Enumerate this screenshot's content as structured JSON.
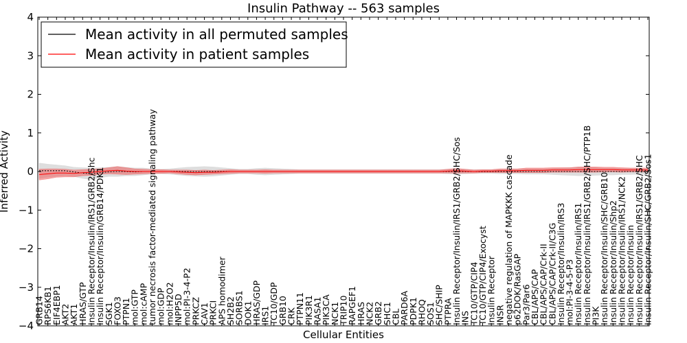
{
  "chart_data": {
    "type": "line",
    "title": "Insulin Pathway -- 563 samples",
    "xlabel": "Cellular Entities",
    "ylabel": "Inferred Activity",
    "ylim": [
      -4,
      4
    ],
    "yticks": [
      -4,
      -3,
      -2,
      -1,
      0,
      1,
      2,
      3,
      4
    ],
    "ytick_labels": [
      "−4",
      "−3",
      "−2",
      "−1",
      "0",
      "1",
      "2",
      "3",
      "4"
    ],
    "grid": false,
    "legend_position": "top-left",
    "categories": [
      "GRB14",
      "RPS6KB1",
      "EIF4EBP1",
      "AKT2",
      "AKT1",
      "HRAS/GTP",
      "Insulin Receptor/Insulin/IRS1/GRB2/Shc",
      "Insulin Receptor/Insulin/GRB14/PDK1",
      "SGK1",
      "FOXO3",
      "PTPN1",
      "mol:GTP",
      "mol:cAMP",
      "tumor necrosis factor-mediated signaling pathway",
      "mol:GDP",
      "mol:H2O2",
      "INPP5D",
      "mol:PI-3-4-P2",
      "PRKCZ",
      "CAV1",
      "PRKCI",
      "APS homodimer",
      "SH2B2",
      "SORBS1",
      "DOK1",
      "HRAS/GDP",
      "IRS1",
      "TC10/GDP",
      "GRB10",
      "CRK",
      "PTPN11",
      "PIK3R1",
      "RASA1",
      "PIK3CA",
      "NCK1",
      "TRIP10",
      "RAPGEF1",
      "HRAS",
      "NCK2",
      "GRB2",
      "SHC1",
      "CBL",
      "PARD6A",
      "PDPK1",
      "RHOQ",
      "SOS1",
      "SHC/SHIP",
      "PTPRA",
      "Insulin Receptor/Insulin/IRS1/GRB2/SHC/Sos",
      "INS",
      "TC10/GTP/CIP4",
      "TC10/GTP/CIP4/Exocyst",
      "Insulin Receptor",
      "INSR",
      "negative regulation of MAPKKK cascade",
      "p62DOK/RasGAP",
      "Par3/Par6",
      "CBL/APS/CAP",
      "CBL/APS/CAP/Crk-II",
      "CBL/APS/CAP/Crk-II/C3G",
      "Insulin Receptor/Insulin/IRS3",
      "mol:PI-3-4-5-P3",
      "Insulin Receptor/Insulin/IRS1",
      "Insulin Receptor/Insulin/IRS1/GRB2/SHC/PTP1B",
      "PI3K",
      "Insulin Receptor/Insulin/SHC/GRB10",
      "Insulin Receptor/Insulin/Shp2",
      "Insulin Receptor/Insulin/IRS1/NCK2",
      "Insulin Receptor/Insulin",
      "Insulin Receptor/Insulin/IRS1/GRB2/SHC",
      "Insulin Receptor/Insulin/SHC/GRB2/Sos1"
    ],
    "series": [
      {
        "name": "Mean activity in all permuted samples",
        "color": "#000000",
        "values": [
          0.02,
          0.02,
          0.02,
          0.02,
          -0.01,
          -0.04,
          -0.06,
          -0.03,
          -0.01,
          0.0,
          0.0,
          -0.01,
          0.0,
          0.0,
          0.0,
          0.0,
          0.0,
          0.0,
          0.0,
          0.0,
          0.0,
          0.0,
          0.0,
          0.0,
          0.0,
          0.0,
          0.0,
          0.0,
          0.0,
          0.0,
          0.0,
          0.0,
          0.0,
          0.0,
          0.0,
          0.0,
          0.0,
          0.0,
          0.0,
          0.0,
          0.0,
          0.0,
          0.0,
          0.0,
          0.0,
          0.0,
          0.0,
          0.0,
          0.0,
          0.0,
          0.0,
          0.0,
          0.0,
          0.0,
          0.0,
          0.0,
          0.0,
          0.0,
          0.0,
          0.0,
          0.0,
          0.0,
          0.0,
          0.0,
          0.0,
          0.0,
          0.0,
          0.0,
          0.0,
          0.0,
          0.0
        ],
        "band": [
          0.2,
          0.17,
          0.15,
          0.13,
          0.12,
          0.14,
          0.15,
          0.13,
          0.12,
          0.13,
          0.11,
          0.1,
          0.09,
          0.07,
          0.06,
          0.07,
          0.09,
          0.11,
          0.12,
          0.13,
          0.12,
          0.1,
          0.08,
          0.06,
          0.06,
          0.08,
          0.09,
          0.08,
          0.07,
          0.06,
          0.05,
          0.05,
          0.05,
          0.05,
          0.05,
          0.05,
          0.05,
          0.05,
          0.05,
          0.05,
          0.05,
          0.05,
          0.05,
          0.05,
          0.05,
          0.05,
          0.05,
          0.06,
          0.07,
          0.06,
          0.05,
          0.05,
          0.05,
          0.06,
          0.06,
          0.06,
          0.07,
          0.07,
          0.07,
          0.08,
          0.09,
          0.1,
          0.11,
          0.11,
          0.1,
          0.09,
          0.09,
          0.08,
          0.08,
          0.07,
          0.06
        ]
      },
      {
        "name": "Mean activity in patient samples",
        "color": "#ff0000",
        "values": [
          -0.08,
          -0.06,
          -0.04,
          -0.04,
          -0.05,
          -0.03,
          -0.02,
          0.0,
          0.02,
          0.03,
          0.01,
          0.0,
          0.0,
          0.0,
          0.0,
          0.0,
          -0.01,
          -0.02,
          -0.03,
          -0.02,
          -0.02,
          -0.01,
          0.0,
          0.0,
          0.0,
          0.0,
          0.0,
          0.0,
          0.0,
          0.0,
          0.0,
          0.0,
          0.0,
          0.0,
          0.0,
          0.0,
          0.0,
          0.0,
          0.0,
          0.0,
          0.0,
          0.0,
          0.0,
          0.0,
          0.0,
          0.0,
          0.0,
          0.01,
          0.02,
          0.01,
          0.0,
          0.01,
          0.01,
          0.02,
          0.02,
          0.02,
          0.03,
          0.03,
          0.03,
          0.04,
          0.04,
          0.04,
          0.05,
          0.05,
          0.05,
          0.05,
          0.05,
          0.04,
          0.04,
          0.04,
          0.04
        ],
        "band": [
          0.14,
          0.13,
          0.11,
          0.1,
          0.09,
          0.08,
          0.08,
          0.07,
          0.08,
          0.1,
          0.09,
          0.07,
          0.06,
          0.05,
          0.05,
          0.04,
          0.05,
          0.06,
          0.06,
          0.06,
          0.05,
          0.05,
          0.05,
          0.04,
          0.04,
          0.04,
          0.05,
          0.04,
          0.04,
          0.04,
          0.04,
          0.04,
          0.04,
          0.04,
          0.04,
          0.04,
          0.04,
          0.04,
          0.04,
          0.04,
          0.04,
          0.04,
          0.04,
          0.04,
          0.04,
          0.04,
          0.04,
          0.05,
          0.06,
          0.05,
          0.04,
          0.04,
          0.04,
          0.05,
          0.05,
          0.05,
          0.06,
          0.06,
          0.06,
          0.06,
          0.06,
          0.06,
          0.07,
          0.07,
          0.07,
          0.06,
          0.06,
          0.06,
          0.05,
          0.05,
          0.05
        ]
      }
    ]
  }
}
